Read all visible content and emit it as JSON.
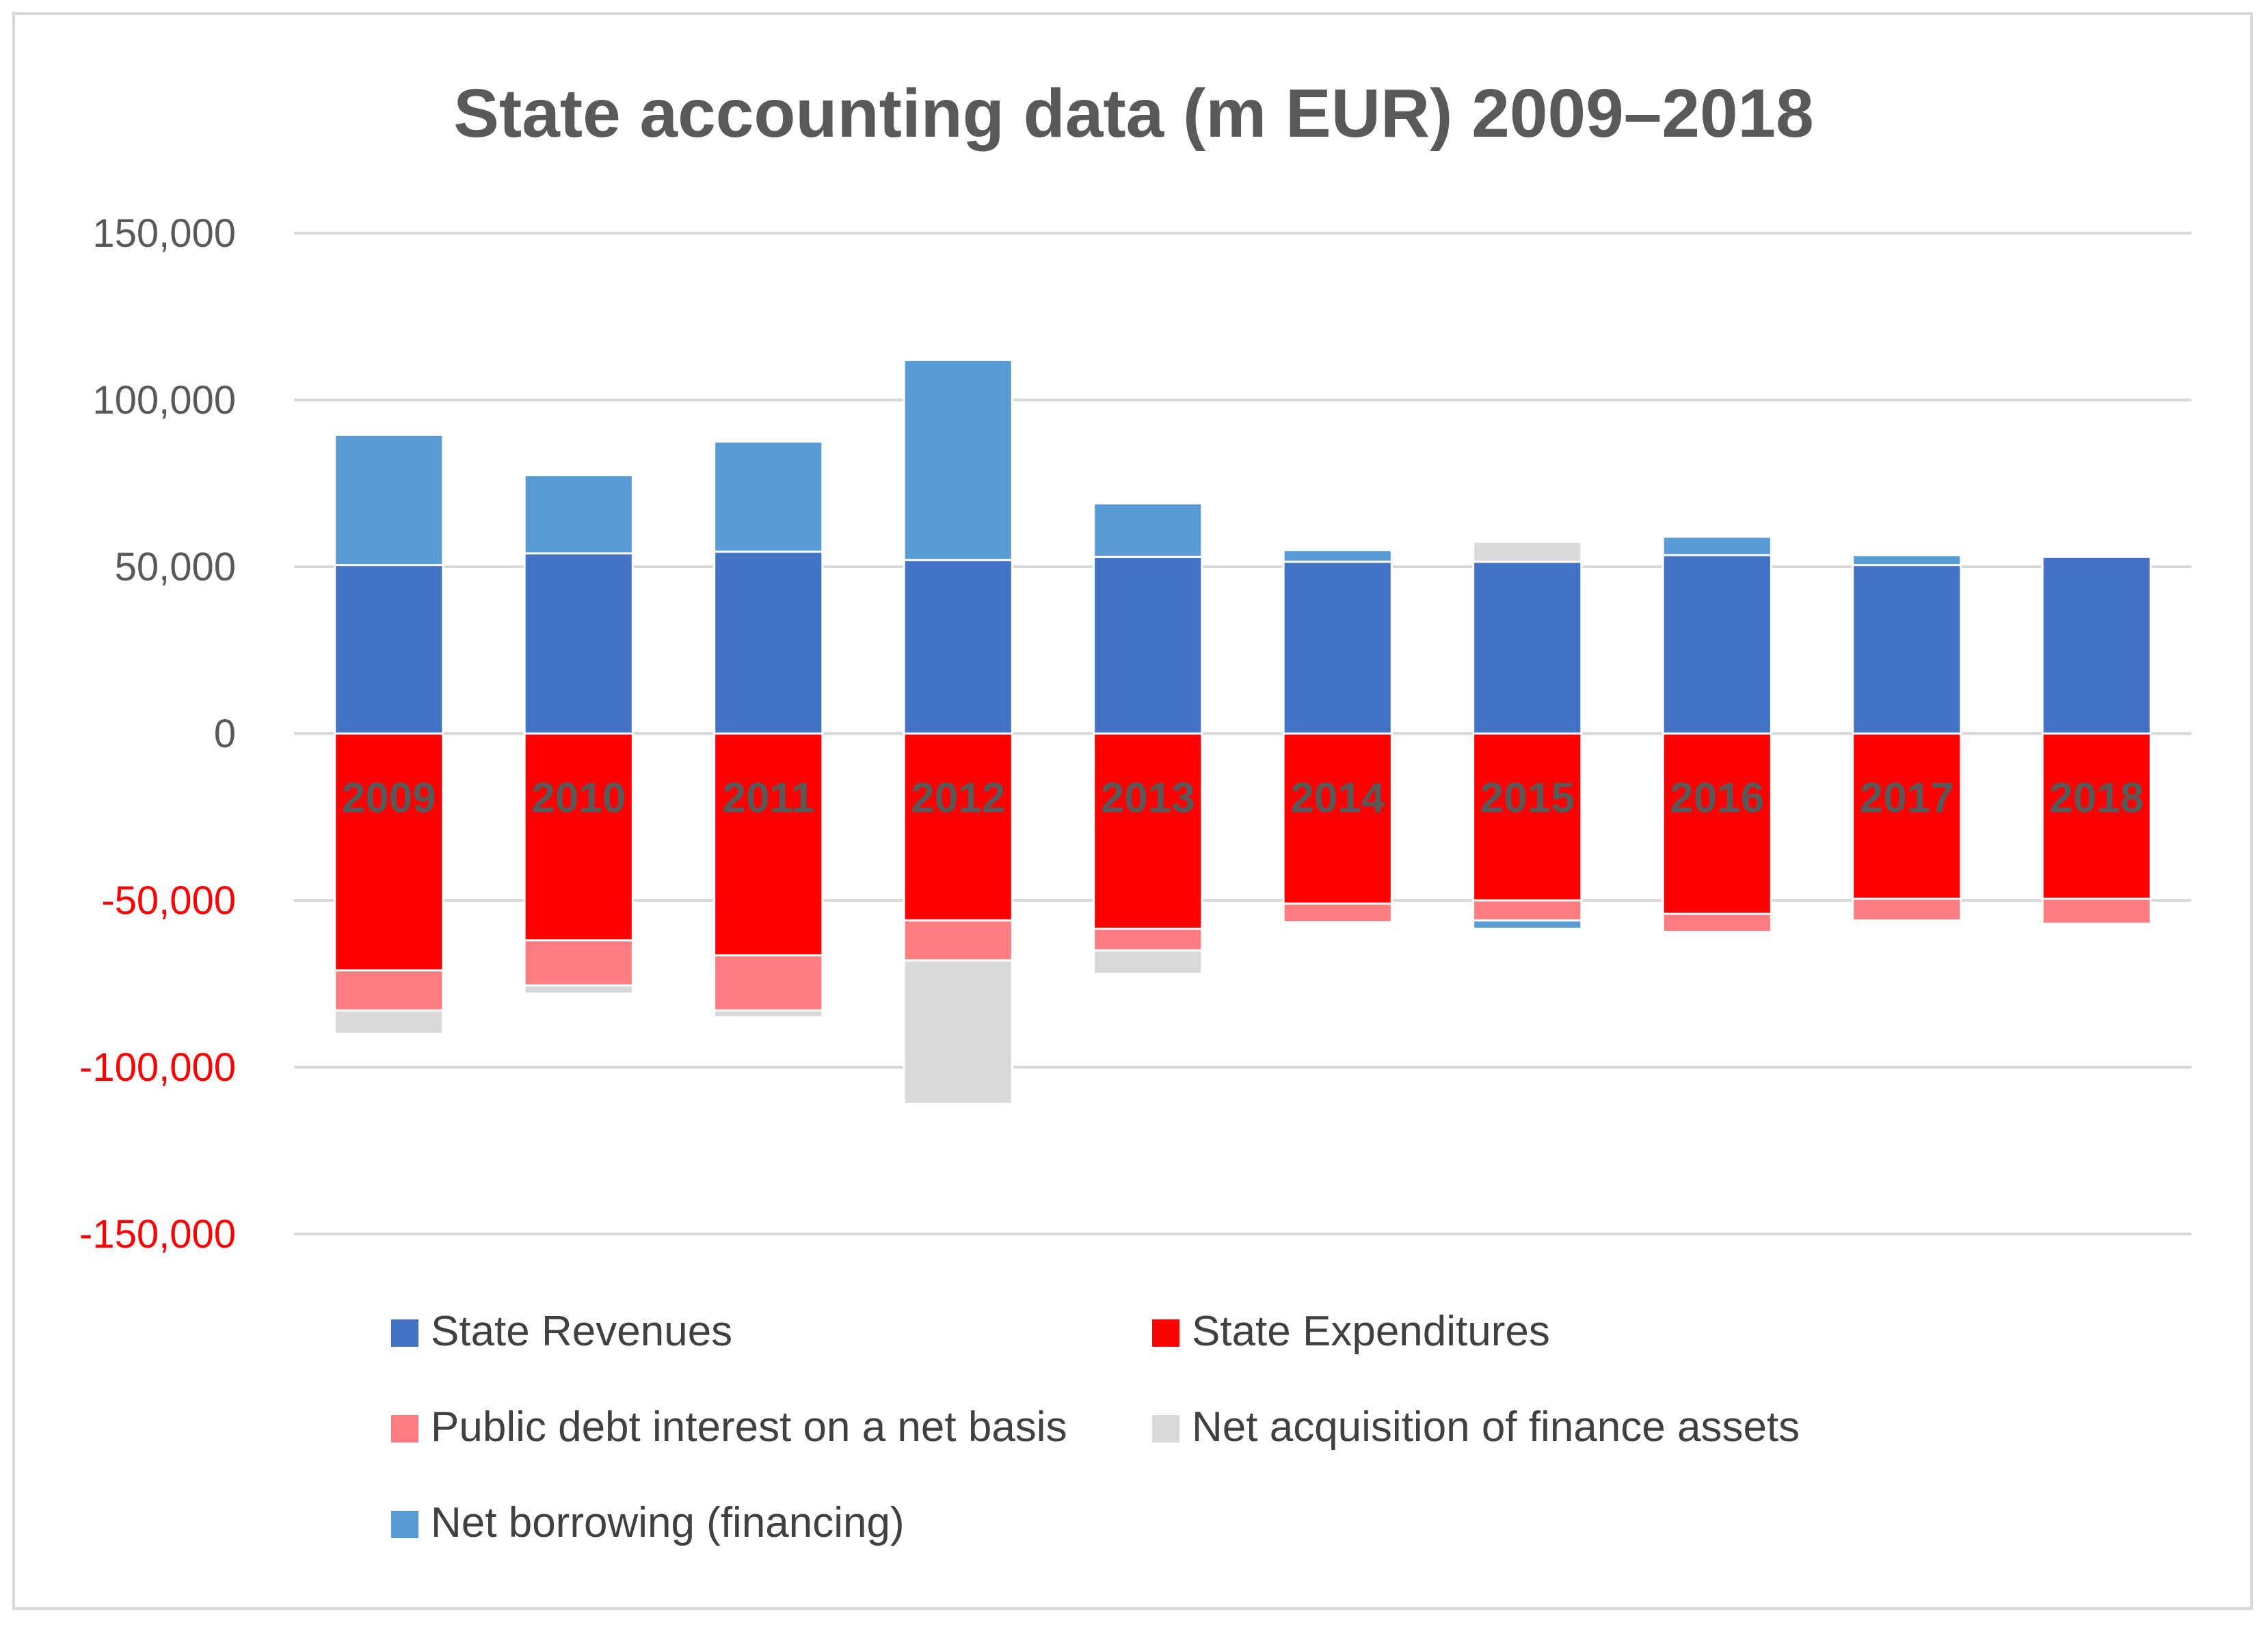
{
  "chart_data": {
    "type": "bar",
    "stacked": true,
    "title": "State accounting data (m EUR) 2009–2018",
    "xlabel": "",
    "ylabel": "",
    "ylim": [
      -150000,
      150000
    ],
    "yticks": [
      150000,
      100000,
      50000,
      0,
      -50000,
      -100000,
      -150000
    ],
    "ytick_labels": [
      "150,000",
      "100,000",
      "50,000",
      "0",
      "-50,000",
      "-100,000",
      "-150,000"
    ],
    "ytick_colors": {
      "positive": "#595959",
      "negative": "#ff0000"
    },
    "grid": true,
    "legend_position": "bottom",
    "categories": [
      "2009",
      "2010",
      "2011",
      "2012",
      "2013",
      "2014",
      "2015",
      "2016",
      "2017",
      "2018"
    ],
    "series": [
      {
        "name": "State Revenues",
        "color": "#4472c4",
        "values": [
          50500,
          54000,
          54500,
          52000,
          53000,
          51500,
          51500,
          53500,
          50500,
          53000
        ]
      },
      {
        "name": "State Expenditures",
        "color": "#ff0000",
        "values": [
          -71000,
          -62000,
          -66500,
          -56000,
          -58500,
          -51000,
          -50000,
          -54000,
          -49500,
          -49500
        ]
      },
      {
        "name": "Public debt interest on a net basis",
        "color": "#ff7c80",
        "values": [
          -12000,
          -13500,
          -16500,
          -12000,
          -6500,
          -5500,
          -6000,
          -5500,
          -6500,
          -7500
        ]
      },
      {
        "name": "Net acquisition of finance assets",
        "color": "#d9d9d9",
        "values": [
          -7000,
          -2500,
          -2000,
          -43000,
          -7000,
          0,
          6000,
          0,
          0,
          0
        ]
      },
      {
        "name": "Net borrowing (financing)",
        "color": "#5b9bd5",
        "values": [
          39000,
          23500,
          33000,
          60000,
          16000,
          3500,
          -2500,
          5500,
          3000,
          0
        ]
      }
    ]
  }
}
